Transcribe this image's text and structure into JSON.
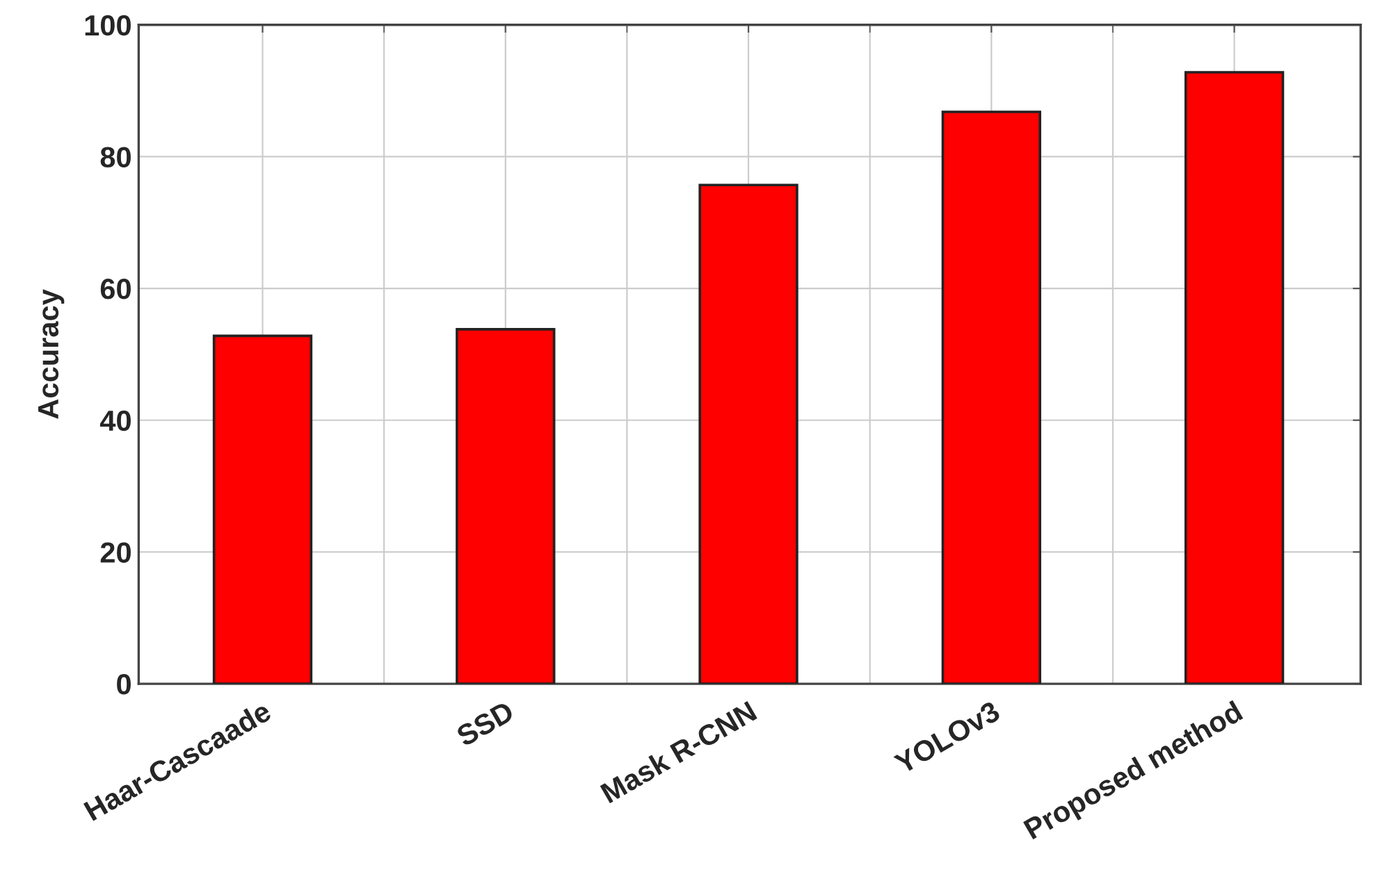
{
  "chart_data": {
    "type": "bar",
    "ylabel": "Accuracy",
    "categories": [
      "Haar-Cascaade",
      "SSD",
      "Mask R-CNN",
      "YOLOv3",
      "Proposed method"
    ],
    "values": [
      52.8,
      53.8,
      75.7,
      86.8,
      92.8
    ],
    "color": "#ff0000",
    "ylim": [
      0,
      100
    ],
    "yticks": [
      0,
      20,
      40,
      60,
      80,
      100
    ],
    "grid": true
  }
}
